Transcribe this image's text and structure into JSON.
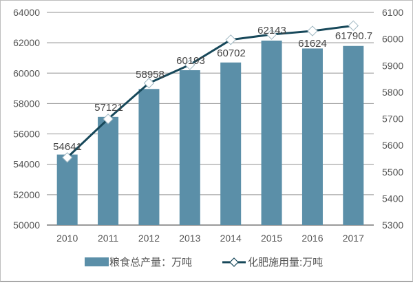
{
  "chart_data": {
    "type": "bar+line",
    "title": "",
    "categories": [
      "2010",
      "2011",
      "2012",
      "2013",
      "2014",
      "2015",
      "2016",
      "2017"
    ],
    "series": [
      {
        "name": "粮食总产量：万吨",
        "type": "bar",
        "axis": "left",
        "color": "#5b8fa8",
        "values": [
          54641,
          57121,
          58958,
          60193,
          60702,
          62143,
          61624,
          61790.7
        ],
        "data_labels": [
          "54641",
          "57121",
          "58958",
          "60193",
          "60702",
          "62143",
          "61624",
          "61790.7"
        ]
      },
      {
        "name": "化肥施用量:万吨",
        "type": "line",
        "axis": "right",
        "color": "#17485a",
        "marker": "diamond-white",
        "values": [
          5554,
          5699,
          5834,
          5903,
          5997,
          6017,
          6030,
          6050
        ]
      }
    ],
    "y_left": {
      "min": 50000,
      "max": 64000,
      "step": 2000,
      "ticks": [
        "50000",
        "52000",
        "54000",
        "56000",
        "58000",
        "60000",
        "62000",
        "64000"
      ]
    },
    "y_right": {
      "min": 5300,
      "max": 6100,
      "step": 100,
      "ticks": [
        "5300",
        "5400",
        "5500",
        "5600",
        "5700",
        "5800",
        "5900",
        "6000",
        "6100"
      ]
    },
    "xlabel": "",
    "ylabel": "",
    "grid": true,
    "legend_position": "bottom"
  },
  "legend": {
    "bar_label": "粮食总产量：万吨",
    "line_label": "化肥施用量:万吨"
  }
}
